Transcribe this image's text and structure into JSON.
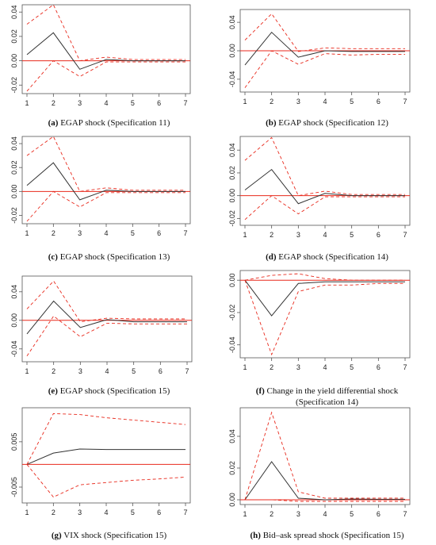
{
  "colors": {
    "estimate": "#333333",
    "band": "#e8291c",
    "zero_line": "#e8291c",
    "frame": "#555555"
  },
  "chart_data": [
    {
      "type": "line",
      "panel_letter": "(a)",
      "caption": "EGAP shock (Specification 11)",
      "x": [
        1,
        2,
        3,
        4,
        5,
        6,
        7
      ],
      "xlim": [
        1,
        7
      ],
      "ylim": [
        -0.027,
        0.046
      ],
      "yticks": [
        "0.04",
        "0.02",
        "0.00",
        "-0.02"
      ],
      "ytick_values": [
        0.04,
        0.02,
        0.0,
        -0.02
      ],
      "xticks": [
        "1",
        "2",
        "3",
        "4",
        "5",
        "6",
        "7"
      ],
      "series": [
        {
          "role": "estimate",
          "values": [
            0.005,
            0.023,
            -0.007,
            0.001,
            0.0,
            0.0,
            0.0
          ]
        },
        {
          "role": "upper",
          "values": [
            0.03,
            0.046,
            0.0,
            0.003,
            0.001,
            0.001,
            0.001
          ]
        },
        {
          "role": "lower",
          "values": [
            -0.025,
            0.0,
            -0.013,
            -0.001,
            -0.001,
            -0.001,
            -0.001
          ]
        }
      ]
    },
    {
      "type": "line",
      "panel_letter": "(b)",
      "caption": "EGAP shock (Specification 12)",
      "x": [
        1,
        2,
        3,
        4,
        5,
        6,
        7
      ],
      "xlim": [
        1,
        7
      ],
      "ylim": [
        -0.058,
        0.058
      ],
      "yticks": [
        "0.04",
        "0.00",
        "-0.04"
      ],
      "ytick_values": [
        0.04,
        0.0,
        -0.04
      ],
      "xticks": [
        "1",
        "2",
        "3",
        "4",
        "5",
        "6",
        "7"
      ],
      "series": [
        {
          "role": "estimate",
          "values": [
            -0.02,
            0.026,
            -0.009,
            0.0,
            -0.001,
            -0.001,
            -0.001
          ]
        },
        {
          "role": "upper",
          "values": [
            0.015,
            0.052,
            -0.001,
            0.004,
            0.003,
            0.003,
            0.003
          ]
        },
        {
          "role": "lower",
          "values": [
            -0.052,
            0.0,
            -0.019,
            -0.004,
            -0.006,
            -0.005,
            -0.005
          ]
        }
      ]
    },
    {
      "type": "line",
      "panel_letter": "(c)",
      "caption": "EGAP shock (Specification 13)",
      "x": [
        1,
        2,
        3,
        4,
        5,
        6,
        7
      ],
      "xlim": [
        1,
        7
      ],
      "ylim": [
        -0.027,
        0.046
      ],
      "yticks": [
        "0.04",
        "0.02",
        "0.00",
        "-0.02"
      ],
      "ytick_values": [
        0.04,
        0.02,
        0.0,
        -0.02
      ],
      "xticks": [
        "1",
        "2",
        "3",
        "4",
        "5",
        "6",
        "7"
      ],
      "series": [
        {
          "role": "estimate",
          "values": [
            0.005,
            0.024,
            -0.007,
            0.001,
            0.0,
            0.0,
            0.0
          ]
        },
        {
          "role": "upper",
          "values": [
            0.03,
            0.046,
            0.0,
            0.003,
            0.001,
            0.001,
            0.001
          ]
        },
        {
          "role": "lower",
          "values": [
            -0.025,
            0.0,
            -0.013,
            -0.001,
            -0.001,
            -0.001,
            -0.001
          ]
        }
      ]
    },
    {
      "type": "line",
      "panel_letter": "(d)",
      "caption": "EGAP shock (Specification 14)",
      "x": [
        1,
        2,
        3,
        4,
        5,
        6,
        7
      ],
      "xlim": [
        1,
        7
      ],
      "ylim": [
        -0.026,
        0.052
      ],
      "yticks": [
        "0.04",
        "0.02",
        "0.00",
        "-0.02"
      ],
      "ytick_values": [
        0.04,
        0.02,
        0.0,
        -0.02
      ],
      "xticks": [
        "1",
        "2",
        "3",
        "4",
        "5",
        "6",
        "7"
      ],
      "series": [
        {
          "role": "estimate",
          "values": [
            0.005,
            0.023,
            -0.007,
            0.002,
            0.0,
            0.0,
            0.0
          ]
        },
        {
          "role": "upper",
          "values": [
            0.031,
            0.051,
            0.0,
            0.004,
            0.001,
            0.001,
            0.001
          ]
        },
        {
          "role": "lower",
          "values": [
            -0.021,
            0.0,
            -0.016,
            -0.001,
            -0.001,
            -0.001,
            -0.001
          ]
        }
      ]
    },
    {
      "type": "line",
      "panel_letter": "(e)",
      "caption": "EGAP shock (Specification 15)",
      "x": [
        1,
        2,
        3,
        4,
        5,
        6,
        7
      ],
      "xlim": [
        1,
        7
      ],
      "ylim": [
        -0.058,
        0.062
      ],
      "yticks": [
        "0.04",
        "0.00",
        "-0.04"
      ],
      "ytick_values": [
        0.04,
        0.0,
        -0.04
      ],
      "xticks": [
        "1",
        "2",
        "3",
        "4",
        "5",
        "6",
        "7"
      ],
      "series": [
        {
          "role": "estimate",
          "values": [
            -0.019,
            0.027,
            -0.01,
            0.001,
            -0.002,
            -0.002,
            -0.002
          ]
        },
        {
          "role": "upper",
          "values": [
            0.016,
            0.055,
            -0.002,
            0.003,
            0.002,
            0.002,
            0.002
          ]
        },
        {
          "role": "lower",
          "values": [
            -0.05,
            0.006,
            -0.023,
            -0.004,
            -0.005,
            -0.005,
            -0.005
          ]
        }
      ]
    },
    {
      "type": "line",
      "panel_letter": "(f)",
      "caption": "Change in the yield differential shock",
      "caption_line2": "(Specification 14)",
      "x": [
        1,
        2,
        3,
        4,
        5,
        6,
        7
      ],
      "xlim": [
        1,
        7
      ],
      "ylim": [
        -0.048,
        0.006
      ],
      "yticks": [
        "0.00",
        "-0.02",
        "-0.04"
      ],
      "ytick_values": [
        0.0,
        -0.02,
        -0.04
      ],
      "xticks": [
        "1",
        "2",
        "3",
        "4",
        "5",
        "6",
        "7"
      ],
      "series": [
        {
          "role": "estimate",
          "values": [
            0.0,
            -0.022,
            -0.002,
            -0.001,
            -0.001,
            -0.001,
            -0.001
          ]
        },
        {
          "role": "upper",
          "values": [
            0.0,
            0.003,
            0.004,
            0.001,
            0.0,
            0.0,
            0.0
          ]
        },
        {
          "role": "lower",
          "values": [
            0.0,
            -0.046,
            -0.007,
            -0.003,
            -0.003,
            -0.002,
            -0.002
          ]
        }
      ]
    },
    {
      "type": "line",
      "panel_letter": "(g)",
      "caption": "VIX shock (Specification 15)",
      "x": [
        1,
        2,
        3,
        4,
        5,
        6,
        7
      ],
      "xlim": [
        1,
        7
      ],
      "ylim": [
        -0.0085,
        0.0125
      ],
      "yticks": [
        "0.005",
        "-0.005"
      ],
      "ytick_values": [
        0.005,
        -0.005
      ],
      "xticks": [
        "1",
        "2",
        "3",
        "4",
        "5",
        "6",
        "7"
      ],
      "series": [
        {
          "role": "estimate",
          "values": [
            0.0,
            0.0025,
            0.0034,
            0.0033,
            0.0033,
            0.0033,
            0.0033
          ]
        },
        {
          "role": "upper",
          "values": [
            0.0,
            0.0112,
            0.011,
            0.0103,
            0.0098,
            0.0093,
            0.0088
          ]
        },
        {
          "role": "lower",
          "values": [
            0.0,
            -0.0072,
            -0.0045,
            -0.004,
            -0.0035,
            -0.0032,
            -0.0028
          ]
        }
      ]
    },
    {
      "type": "line",
      "panel_letter": "(h)",
      "caption": "Bid–ask spread shock (Specification 15)",
      "x": [
        1,
        2,
        3,
        4,
        5,
        6,
        7
      ],
      "xlim": [
        1,
        7
      ],
      "ylim": [
        -0.003,
        0.058
      ],
      "yticks": [
        "0.04",
        "0.02",
        "0.00"
      ],
      "ytick_values": [
        0.04,
        0.02,
        0.0
      ],
      "xticks": [
        "1",
        "2",
        "3",
        "4",
        "5",
        "6",
        "7"
      ],
      "series": [
        {
          "role": "estimate",
          "values": [
            0.0,
            0.024,
            0.001,
            0.0,
            0.0005,
            0.0003,
            0.0003
          ]
        },
        {
          "role": "upper",
          "values": [
            0.0,
            0.055,
            0.005,
            0.001,
            0.001,
            0.001,
            0.001
          ]
        },
        {
          "role": "lower",
          "values": [
            0.0,
            0.0,
            -0.001,
            -0.001,
            -0.001,
            -0.001,
            -0.001
          ]
        }
      ]
    }
  ]
}
